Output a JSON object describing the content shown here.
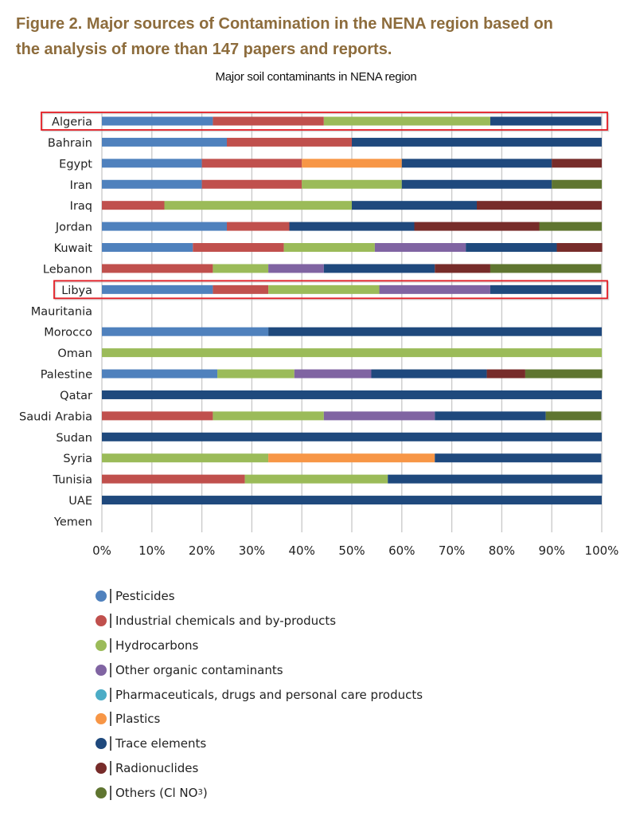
{
  "figure": {
    "title_line1": "Figure 2. Major sources of Contamination in the NENA region based on",
    "title_line2": "the analysis of more than 147 papers and reports."
  },
  "highlighted_categories": [
    "Algeria",
    "Libya"
  ],
  "highlight_color": "#e31b23",
  "chart_data": {
    "type": "bar",
    "orientation": "horizontal",
    "stacked": "percent",
    "title": "Major soil contaminants in NENA region",
    "xlabel": "",
    "ylabel": "",
    "xlim": [
      0,
      100
    ],
    "x_ticks": [
      "0%",
      "10%",
      "20%",
      "30%",
      "40%",
      "50%",
      "60%",
      "70%",
      "80%",
      "90%",
      "100%"
    ],
    "grid": "vertical",
    "legend_position": "bottom",
    "categories": [
      "Algeria",
      "Bahrain",
      "Egypt",
      "Iran",
      "Iraq",
      "Jordan",
      "Kuwait",
      "Lebanon",
      "Libya",
      "Mauritania",
      "Morocco",
      "Oman",
      "Palestine",
      "Qatar",
      "Saudi Arabia",
      "Sudan",
      "Syria",
      "Tunisia",
      "UAE",
      "Yemen"
    ],
    "series": [
      {
        "name": "Pesticides",
        "color": "#4f81bd",
        "values": [
          22.2,
          25,
          20,
          20,
          0,
          25,
          18.2,
          0,
          22.2,
          0,
          33.3,
          0,
          23.1,
          0,
          0,
          0,
          0,
          0,
          0,
          0
        ]
      },
      {
        "name": "Industrial chemicals and by-products",
        "color": "#c0504d",
        "values": [
          22.2,
          25,
          20,
          20,
          12.5,
          12.5,
          18.2,
          22.2,
          11.1,
          0,
          0,
          0,
          0,
          0,
          22.2,
          0,
          0,
          28.6,
          0,
          0
        ]
      },
      {
        "name": "Hydrocarbons",
        "color": "#9bbb59",
        "values": [
          33.3,
          0,
          0,
          20,
          37.5,
          0,
          18.2,
          11.1,
          22.2,
          0,
          0,
          100,
          15.4,
          0,
          22.2,
          0,
          33.3,
          28.6,
          0,
          0
        ]
      },
      {
        "name": "Other organic contaminants",
        "color": "#8064a2",
        "values": [
          0,
          0,
          0,
          0,
          0,
          0,
          18.2,
          11.1,
          22.2,
          0,
          0,
          0,
          15.4,
          0,
          22.2,
          0,
          0,
          0,
          0,
          0
        ]
      },
      {
        "name": "Pharmaceuticals, drugs and personal care products",
        "color": "#4bacc6",
        "values": [
          0,
          0,
          0,
          0,
          0,
          0,
          0,
          0,
          0,
          0,
          0,
          0,
          0,
          0,
          0,
          0,
          0,
          0,
          0,
          0
        ]
      },
      {
        "name": "Plastics",
        "color": "#f79646",
        "values": [
          0,
          0,
          20,
          0,
          0,
          0,
          0,
          0,
          0,
          0,
          0,
          0,
          0,
          0,
          0,
          0,
          33.3,
          0,
          0,
          0
        ]
      },
      {
        "name": "Trace elements",
        "color": "#1f497d",
        "values": [
          22.2,
          50,
          30,
          30,
          25,
          25,
          18.2,
          22.2,
          22.2,
          0,
          66.7,
          0,
          23.1,
          100,
          22.2,
          100,
          33.3,
          42.9,
          100,
          0
        ]
      },
      {
        "name": "Radionuclides",
        "color": "#772c2a",
        "values": [
          0,
          0,
          10,
          0,
          25,
          25,
          9.1,
          11.1,
          0,
          0,
          0,
          0,
          7.7,
          0,
          0,
          0,
          0,
          0,
          0,
          0
        ]
      },
      {
        "name": "Others (Cl NO3)",
        "color": "#5f7530",
        "values": [
          0,
          0,
          0,
          10,
          0,
          12.5,
          0,
          22.2,
          0,
          0,
          0,
          0,
          15.4,
          0,
          11.1,
          0,
          0,
          0,
          0,
          0
        ]
      }
    ]
  },
  "legend": [
    {
      "label": "Pesticides",
      "color": "#4f81bd"
    },
    {
      "label": "Industrial chemicals and by-products",
      "color": "#c0504d"
    },
    {
      "label": "Hydrocarbons",
      "color": "#9bbb59"
    },
    {
      "label": "Other organic contaminants",
      "color": "#8064a2"
    },
    {
      "label": "Pharmaceuticals, drugs and personal care products",
      "color": "#4bacc6"
    },
    {
      "label": "Plastics",
      "color": "#f79646"
    },
    {
      "label": "Trace elements",
      "color": "#1f497d"
    },
    {
      "label": "Radionuclides",
      "color": "#772c2a"
    },
    {
      "label": "Others (Cl NO",
      "label_sub": "3",
      "label_end": ")",
      "color": "#5f7530"
    }
  ]
}
